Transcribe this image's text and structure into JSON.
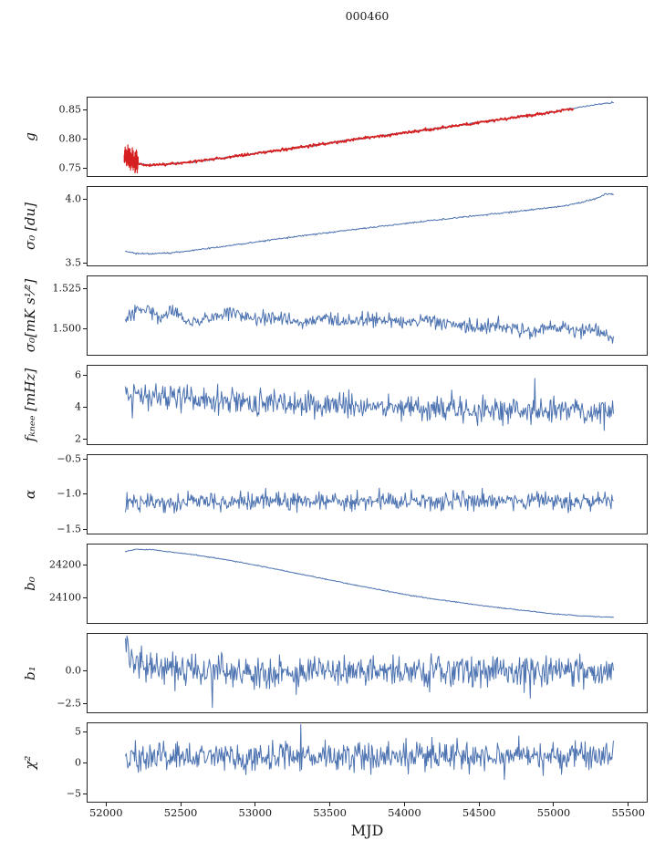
{
  "title": "000460",
  "axes": {
    "xlabel": "MJD",
    "xlim": [
      51870,
      55630
    ],
    "xticks": [
      52000,
      52500,
      53000,
      53500,
      54000,
      54500,
      55000,
      55500
    ],
    "xtick_labels": [
      "52000",
      "52500",
      "53000",
      "53500",
      "54000",
      "54500",
      "55000",
      "55500"
    ]
  },
  "colors": {
    "line": "#4c72b0",
    "overlay": "#d62020",
    "frame": "#262626",
    "text": "#1a1a1a"
  },
  "chart_data": [
    {
      "id": "g",
      "type": "line",
      "ylabel": "g",
      "ylim": [
        0.735,
        0.872
      ],
      "yticks": [
        0.75,
        0.8,
        0.85
      ],
      "ytick_labels": [
        "0.75",
        "0.80",
        "0.85"
      ],
      "series": [
        {
          "name": "gain-trend",
          "color": "#4c72b0",
          "lw": 1.0,
          "seed": 11,
          "noise": 0.0007,
          "n": 650,
          "x_start": 52130,
          "x_end": 55400,
          "keypoints": [
            [
              52130,
              0.773
            ],
            [
              52165,
              0.765
            ],
            [
              52210,
              0.758
            ],
            [
              52270,
              0.7555
            ],
            [
              52400,
              0.7565
            ],
            [
              52550,
              0.76
            ],
            [
              52750,
              0.7665
            ],
            [
              53000,
              0.775
            ],
            [
              53250,
              0.784
            ],
            [
              53500,
              0.793
            ],
            [
              53750,
              0.802
            ],
            [
              54000,
              0.8105
            ],
            [
              54250,
              0.819
            ],
            [
              54500,
              0.828
            ],
            [
              54750,
              0.837
            ],
            [
              55000,
              0.846
            ],
            [
              55150,
              0.853
            ],
            [
              55300,
              0.859
            ],
            [
              55400,
              0.862
            ]
          ]
        },
        {
          "name": "gain-overlay",
          "color": "#d62020",
          "lw": 1.7,
          "seed": 12,
          "noise": 0.0011,
          "n": 620,
          "x_start": 52125,
          "x_end": 55130,
          "errorbar": {
            "x0": 52122,
            "x1": 52215,
            "amp": 0.015
          },
          "keypoints": [
            [
              52130,
              0.773
            ],
            [
              52165,
              0.765
            ],
            [
              52210,
              0.758
            ],
            [
              52270,
              0.7555
            ],
            [
              52400,
              0.7565
            ],
            [
              52550,
              0.76
            ],
            [
              52750,
              0.7665
            ],
            [
              53000,
              0.775
            ],
            [
              53250,
              0.784
            ],
            [
              53500,
              0.793
            ],
            [
              53750,
              0.802
            ],
            [
              54000,
              0.8105
            ],
            [
              54250,
              0.819
            ],
            [
              54500,
              0.828
            ],
            [
              54750,
              0.837
            ],
            [
              55000,
              0.846
            ],
            [
              55130,
              0.852
            ]
          ]
        }
      ]
    },
    {
      "id": "sigma0-du",
      "type": "line",
      "ylabel": "σ₀ [du]",
      "ylim": [
        3.47,
        4.1
      ],
      "yticks": [
        3.5,
        4.0
      ],
      "ytick_labels": [
        "3.5",
        "4.0"
      ],
      "series": [
        {
          "name": "sigma0-du-trend",
          "color": "#4c72b0",
          "lw": 1.0,
          "seed": 21,
          "noise": 0.003,
          "n": 650,
          "x_start": 52130,
          "x_end": 55400,
          "keypoints": [
            [
              52130,
              3.588
            ],
            [
              52200,
              3.572
            ],
            [
              52320,
              3.568
            ],
            [
              52450,
              3.578
            ],
            [
              52600,
              3.598
            ],
            [
              52800,
              3.628
            ],
            [
              53000,
              3.66
            ],
            [
              53200,
              3.692
            ],
            [
              53400,
              3.722
            ],
            [
              53600,
              3.75
            ],
            [
              53800,
              3.778
            ],
            [
              54000,
              3.806
            ],
            [
              54200,
              3.832
            ],
            [
              54400,
              3.858
            ],
            [
              54600,
              3.882
            ],
            [
              54800,
              3.906
            ],
            [
              55000,
              3.935
            ],
            [
              55100,
              3.95
            ],
            [
              55200,
              3.975
            ],
            [
              55300,
              4.01
            ],
            [
              55350,
              4.04
            ],
            [
              55400,
              4.035
            ]
          ]
        }
      ]
    },
    {
      "id": "sigma0-mks",
      "type": "line",
      "ylabel": "σ₀[mK s¹⁄²]",
      "ylim": [
        1.483,
        1.533
      ],
      "yticks": [
        1.5,
        1.525
      ],
      "ytick_labels": [
        "1.500",
        "1.525"
      ],
      "series": [
        {
          "name": "sigma0-mks-trend",
          "color": "#4c72b0",
          "lw": 1.0,
          "seed": 31,
          "noise": 0.0022,
          "n": 620,
          "x_start": 52130,
          "x_end": 55400,
          "keypoints": [
            [
              52130,
              1.5045
            ],
            [
              52200,
              1.51
            ],
            [
              52280,
              1.513
            ],
            [
              52360,
              1.507
            ],
            [
              52450,
              1.512
            ],
            [
              52560,
              1.5035
            ],
            [
              52700,
              1.507
            ],
            [
              52850,
              1.51
            ],
            [
              53000,
              1.505
            ],
            [
              53150,
              1.5065
            ],
            [
              53300,
              1.503
            ],
            [
              53450,
              1.507
            ],
            [
              53600,
              1.504
            ],
            [
              53800,
              1.5055
            ],
            [
              54000,
              1.5035
            ],
            [
              54200,
              1.505
            ],
            [
              54400,
              1.5
            ],
            [
              54600,
              1.502
            ],
            [
              54800,
              1.499
            ],
            [
              55000,
              1.501
            ],
            [
              55150,
              1.4975
            ],
            [
              55280,
              1.5
            ],
            [
              55400,
              1.4945
            ]
          ]
        }
      ]
    },
    {
      "id": "f-knee",
      "type": "line",
      "ylabel": "fₖₙₑₑ [mHz]",
      "ylim": [
        1.6,
        6.6
      ],
      "yticks": [
        2,
        4,
        6
      ],
      "ytick_labels": [
        "2",
        "4",
        "6"
      ],
      "series": [
        {
          "name": "fknee-trend",
          "color": "#4c72b0",
          "lw": 1.0,
          "seed": 41,
          "noise": 0.42,
          "outlier_p": 0.006,
          "n": 640,
          "x_start": 52130,
          "x_end": 55400,
          "keypoints": [
            [
              52130,
              4.85
            ],
            [
              52250,
              4.65
            ],
            [
              52450,
              4.55
            ],
            [
              52700,
              4.35
            ],
            [
              53000,
              4.2
            ],
            [
              53300,
              4.15
            ],
            [
              53600,
              4.05
            ],
            [
              53900,
              3.95
            ],
            [
              54200,
              3.9
            ],
            [
              54500,
              3.85
            ],
            [
              54800,
              3.8
            ],
            [
              55100,
              3.75
            ],
            [
              55400,
              3.65
            ]
          ]
        }
      ]
    },
    {
      "id": "alpha",
      "type": "line",
      "ylabel": "α",
      "ylim": [
        -1.58,
        -0.44
      ],
      "yticks": [
        -1.5,
        -1.0,
        -0.5
      ],
      "ytick_labels": [
        "−1.5",
        "−1.0",
        "−0.5"
      ],
      "series": [
        {
          "name": "alpha-trend",
          "color": "#4c72b0",
          "lw": 1.0,
          "seed": 51,
          "noise": 0.065,
          "n": 640,
          "x_start": 52130,
          "x_end": 55400,
          "keypoints": [
            [
              52130,
              -1.115
            ],
            [
              53000,
              -1.11
            ],
            [
              54000,
              -1.108
            ],
            [
              55400,
              -1.1
            ]
          ]
        }
      ]
    },
    {
      "id": "b0",
      "type": "line",
      "ylabel": "b₀",
      "ylim": [
        24022,
        24262
      ],
      "yticks": [
        24100,
        24200
      ],
      "ytick_labels": [
        "24100",
        "24200"
      ],
      "series": [
        {
          "name": "b0-trend",
          "color": "#4c72b0",
          "lw": 1.0,
          "seed": 61,
          "noise": 0.7,
          "n": 650,
          "x_start": 52130,
          "x_end": 55400,
          "keypoints": [
            [
              52130,
              24238
            ],
            [
              52200,
              24245
            ],
            [
              52300,
              24244
            ],
            [
              52450,
              24236
            ],
            [
              52600,
              24228
            ],
            [
              52800,
              24214
            ],
            [
              53000,
              24198
            ],
            [
              53200,
              24180
            ],
            [
              53400,
              24162
            ],
            [
              53600,
              24144
            ],
            [
              53800,
              24127
            ],
            [
              54000,
              24110
            ],
            [
              54200,
              24096
            ],
            [
              54400,
              24084
            ],
            [
              54600,
              24072
            ],
            [
              54800,
              24062
            ],
            [
              55000,
              24052
            ],
            [
              55150,
              24047
            ],
            [
              55300,
              24043
            ],
            [
              55400,
              24042
            ]
          ]
        }
      ]
    },
    {
      "id": "b1",
      "type": "line",
      "ylabel": "b₁",
      "ylim": [
        -3.3,
        2.9
      ],
      "yticks": [
        -2.5,
        0.0
      ],
      "ytick_labels": [
        "−2.5",
        "0.0"
      ],
      "series": [
        {
          "name": "b1-trend",
          "color": "#4c72b0",
          "lw": 1.0,
          "seed": 71,
          "noise": 0.58,
          "outlier_p": 0.012,
          "n": 640,
          "x_start": 52130,
          "x_end": 55400,
          "keypoints": [
            [
              52130,
              2.25
            ],
            [
              52155,
              1.5
            ],
            [
              52190,
              0.8
            ],
            [
              52240,
              0.35
            ],
            [
              52330,
              0.1
            ],
            [
              52500,
              0.0
            ],
            [
              53500,
              -0.02
            ],
            [
              54500,
              0.0
            ],
            [
              55400,
              -0.05
            ]
          ]
        }
      ]
    },
    {
      "id": "chi2",
      "type": "line",
      "ylabel": "χ²",
      "ylim": [
        -6.4,
        6.4
      ],
      "yticks": [
        -5,
        0,
        5
      ],
      "ytick_labels": [
        "−5",
        "0",
        "5"
      ],
      "series": [
        {
          "name": "chi2-trend",
          "color": "#4c72b0",
          "lw": 1.0,
          "seed": 81,
          "noise": 1.15,
          "outlier_p": 0.006,
          "n": 640,
          "x_start": 52130,
          "x_end": 55400,
          "keypoints": [
            [
              52130,
              0.9
            ],
            [
              53000,
              0.85
            ],
            [
              54000,
              0.9
            ],
            [
              55400,
              0.95
            ]
          ]
        }
      ]
    }
  ]
}
